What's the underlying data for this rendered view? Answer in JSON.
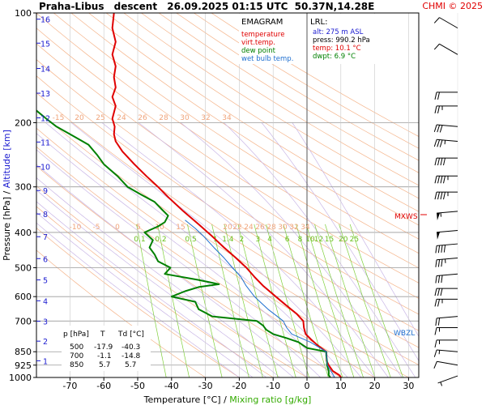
{
  "header": {
    "station": "Praha-Libus",
    "mode": "descent",
    "datetime": "26.09.2025 01:15 UTC",
    "coords": "50.37N,14.28E",
    "copyright": "CHMI © 2025"
  },
  "legend": {
    "title": "EMAGRAM",
    "items": [
      {
        "label": "temperature",
        "color": "#e00000"
      },
      {
        "label": "virt.temp.",
        "color": "#e00000"
      },
      {
        "label": "dew point",
        "color": "#008000"
      },
      {
        "label": "wet bulb temp.",
        "color": "#1f6fd0"
      }
    ]
  },
  "lrl": {
    "title": "LRL:",
    "alt": "alt: 275 m ASL",
    "press": "press: 990.2 hPa",
    "temp": "temp: 10.1 °C",
    "dwpt": "dwpt: 6.9 °C"
  },
  "table": {
    "headers": [
      "p [hPa]",
      "T",
      "Td [°C]"
    ],
    "rows": [
      [
        "500",
        "-17.9",
        "-40.3"
      ],
      [
        "700",
        "-1.1",
        "-14.8"
      ],
      [
        "850",
        "5.7",
        "5.7"
      ]
    ]
  },
  "markers": {
    "mxws": "MXWS",
    "wbzl": "WBZL"
  },
  "chart_data": {
    "type": "line",
    "title": "",
    "xlabel": "Temperature [°C]",
    "xlabel2": "Mixing ratio [g/kg]",
    "ylabel": "Pressure [hPa]",
    "ylabel2": "Altitude [km]",
    "xlim": [
      -80,
      32
    ],
    "ylim": [
      1000,
      100
    ],
    "yscale": "log",
    "grid": true,
    "x_ticks": [
      -70,
      -60,
      -50,
      -40,
      -30,
      -20,
      -10,
      0,
      10,
      20,
      30
    ],
    "x_tick_labels": [
      "-70",
      "-60",
      "-50",
      "-40",
      "-30",
      "-20",
      "-10",
      "0",
      "10",
      "20",
      "30"
    ],
    "p_ticks": [
      100,
      200,
      300,
      400,
      500,
      600,
      700,
      850,
      925,
      1000
    ],
    "p_tick_labels": [
      "100",
      "200",
      "300",
      "400",
      "500",
      "600",
      "700",
      "850",
      "925",
      "1000"
    ],
    "alt_ticks": [
      {
        "km": 1,
        "p": 900
      },
      {
        "km": 2,
        "p": 795
      },
      {
        "km": 3,
        "p": 701
      },
      {
        "km": 4,
        "p": 616
      },
      {
        "km": 5,
        "p": 540
      },
      {
        "km": 6,
        "p": 472
      },
      {
        "km": 7,
        "p": 411
      },
      {
        "km": 8,
        "p": 356
      },
      {
        "km": 9,
        "p": 307
      },
      {
        "km": 10,
        "p": 264
      },
      {
        "km": 11,
        "p": 226
      },
      {
        "km": 12,
        "p": 194
      },
      {
        "km": 13,
        "p": 166
      },
      {
        "km": 14,
        "p": 142
      },
      {
        "km": 15,
        "p": 121
      },
      {
        "km": 16,
        "p": 104
      }
    ],
    "upper_isotherm_labels": [
      "-15",
      "20",
      "25",
      "24",
      "26",
      "28",
      "30",
      "32",
      "34"
    ],
    "lower_isotherm_labels": [
      "-10",
      "-5",
      "0",
      "5",
      "10",
      "15",
      "20",
      "22",
      "24",
      "26",
      "28",
      "30",
      "32",
      "34"
    ],
    "mixing_ratio_labels": [
      "0.1",
      "0.2",
      "0.5",
      "1",
      "1.4",
      "2",
      "3",
      "4",
      "6",
      "8",
      "10",
      "12",
      "15",
      "20",
      "25"
    ],
    "mixing_ratio_values": [
      0.1,
      0.2,
      0.5,
      1,
      1.4,
      2,
      3,
      4,
      6,
      8,
      10,
      12,
      15,
      20,
      25
    ],
    "series": [
      {
        "name": "temperature",
        "color": "#e00000",
        "points": [
          [
            1000,
            10.1
          ],
          [
            985,
            9.5
          ],
          [
            960,
            7.6
          ],
          [
            925,
            6.4
          ],
          [
            900,
            5.8
          ],
          [
            870,
            5.8
          ],
          [
            850,
            5.7
          ],
          [
            820,
            3.4
          ],
          [
            790,
            1.4
          ],
          [
            760,
            -0.4
          ],
          [
            730,
            -0.9
          ],
          [
            700,
            -1.1
          ],
          [
            670,
            -3.0
          ],
          [
            630,
            -6.5
          ],
          [
            600,
            -9.2
          ],
          [
            560,
            -13.0
          ],
          [
            530,
            -15.5
          ],
          [
            500,
            -17.9
          ],
          [
            470,
            -21.0
          ],
          [
            440,
            -24.5
          ],
          [
            410,
            -28.0
          ],
          [
            380,
            -32.0
          ],
          [
            350,
            -36.5
          ],
          [
            320,
            -41.0
          ],
          [
            300,
            -44.0
          ],
          [
            280,
            -47.5
          ],
          [
            260,
            -51.0
          ],
          [
            240,
            -54.5
          ],
          [
            225,
            -56.5
          ],
          [
            215,
            -57.0
          ],
          [
            205,
            -56.8
          ],
          [
            195,
            -57.5
          ],
          [
            180,
            -56.5
          ],
          [
            170,
            -57.5
          ],
          [
            160,
            -56.5
          ],
          [
            150,
            -57.0
          ],
          [
            140,
            -56.5
          ],
          [
            130,
            -57.5
          ],
          [
            120,
            -56.5
          ],
          [
            110,
            -57.5
          ],
          [
            100,
            -57.0
          ]
        ]
      },
      {
        "name": "dew point",
        "color": "#008000",
        "points": [
          [
            1000,
            6.9
          ],
          [
            985,
            6.4
          ],
          [
            960,
            6.4
          ],
          [
            925,
            5.9
          ],
          [
            900,
            5.9
          ],
          [
            870,
            5.7
          ],
          [
            850,
            5.7
          ],
          [
            830,
            0.0
          ],
          [
            800,
            -2.5
          ],
          [
            780,
            -6.0
          ],
          [
            760,
            -10.0
          ],
          [
            740,
            -12.0
          ],
          [
            720,
            -13.0
          ],
          [
            700,
            -14.8
          ],
          [
            680,
            -28.0
          ],
          [
            650,
            -32.0
          ],
          [
            620,
            -33.0
          ],
          [
            600,
            -40.0
          ],
          [
            580,
            -36.0
          ],
          [
            565,
            -32.0
          ],
          [
            555,
            -26.0
          ],
          [
            540,
            -32.0
          ],
          [
            520,
            -42.0
          ],
          [
            500,
            -40.3
          ],
          [
            480,
            -44.0
          ],
          [
            460,
            -45.0
          ],
          [
            440,
            -46.5
          ],
          [
            420,
            -45.5
          ],
          [
            400,
            -48.0
          ],
          [
            385,
            -44.0
          ],
          [
            375,
            -42.0
          ],
          [
            360,
            -41.0
          ],
          [
            345,
            -43.0
          ],
          [
            330,
            -45.0
          ],
          [
            315,
            -49.0
          ],
          [
            300,
            -53.0
          ],
          [
            280,
            -56.0
          ],
          [
            260,
            -60.0
          ],
          [
            245,
            -62.0
          ],
          [
            230,
            -64.5
          ],
          [
            215,
            -70.0
          ],
          [
            205,
            -74.0
          ],
          [
            195,
            -77.0
          ],
          [
            185,
            -80.0
          ]
        ]
      },
      {
        "name": "wet bulb temp.",
        "color": "#1f6fd0",
        "points": [
          [
            1000,
            8.2
          ],
          [
            925,
            6.0
          ],
          [
            850,
            5.7
          ],
          [
            800,
            1.0
          ],
          [
            760,
            -4.5
          ],
          [
            730,
            -6.0
          ],
          [
            700,
            -7.0
          ],
          [
            650,
            -11.5
          ],
          [
            600,
            -15.5
          ],
          [
            560,
            -18.0
          ],
          [
            530,
            -19.5
          ],
          [
            500,
            -22.0
          ],
          [
            470,
            -24.5
          ],
          [
            440,
            -27.5
          ],
          [
            410,
            -30.5
          ],
          [
            390,
            -33.0
          ],
          [
            370,
            -36.0
          ]
        ]
      }
    ],
    "wind_barbs": [
      {
        "p": 110,
        "dir": 300,
        "spd": 10
      },
      {
        "p": 130,
        "dir": 300,
        "spd": 10
      },
      {
        "p": 165,
        "dir": 270,
        "spd": 20
      },
      {
        "p": 180,
        "dir": 270,
        "spd": 25
      },
      {
        "p": 205,
        "dir": 275,
        "spd": 30
      },
      {
        "p": 225,
        "dir": 275,
        "spd": 35
      },
      {
        "p": 250,
        "dir": 270,
        "spd": 40
      },
      {
        "p": 280,
        "dir": 270,
        "spd": 45
      },
      {
        "p": 310,
        "dir": 270,
        "spd": 45
      },
      {
        "p": 350,
        "dir": 265,
        "spd": 55
      },
      {
        "p": 395,
        "dir": 265,
        "spd": 50
      },
      {
        "p": 430,
        "dir": 265,
        "spd": 40
      },
      {
        "p": 470,
        "dir": 265,
        "spd": 35
      },
      {
        "p": 520,
        "dir": 265,
        "spd": 30
      },
      {
        "p": 570,
        "dir": 270,
        "spd": 30
      },
      {
        "p": 610,
        "dir": 270,
        "spd": 25
      },
      {
        "p": 680,
        "dir": 265,
        "spd": 20
      },
      {
        "p": 730,
        "dir": 270,
        "spd": 15
      },
      {
        "p": 790,
        "dir": 270,
        "spd": 15
      },
      {
        "p": 850,
        "dir": 275,
        "spd": 15
      },
      {
        "p": 925,
        "dir": 280,
        "spd": 10
      },
      {
        "p": 990,
        "dir": 250,
        "spd": 5
      }
    ]
  }
}
